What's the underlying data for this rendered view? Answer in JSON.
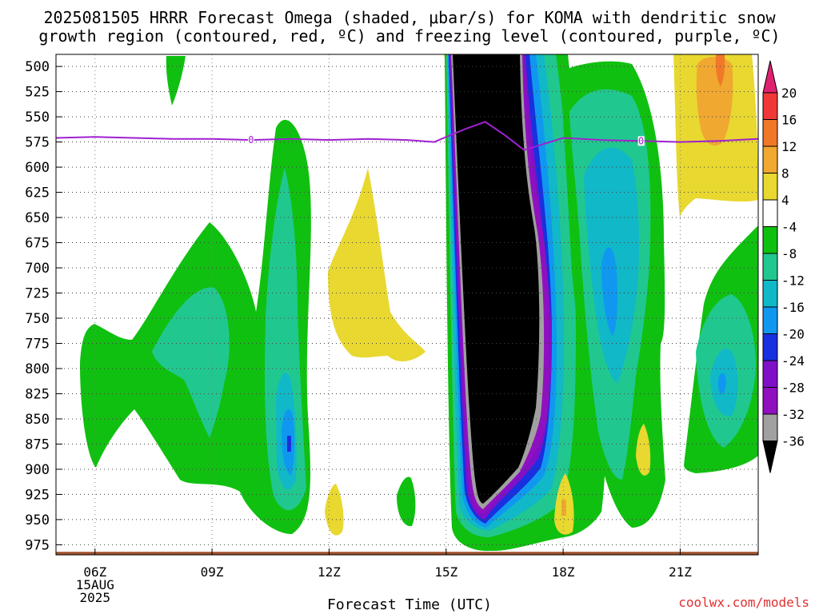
{
  "title": {
    "line1": "2025081505 HRRR Forecast Omega (shaded, μbar/s) for KOMA with dendritic snow",
    "line2": "growth region (contoured, red, ºC) and freezing level (contoured, purple, ºC)"
  },
  "xlabel": "Forecast Time (UTC)",
  "credit": "coolwx.com/models",
  "colors": {
    "freezing_line": "#a020d0",
    "ground": "#a0522d",
    "grid": "#808080"
  },
  "chart_data": {
    "type": "heatmap",
    "y_axis": {
      "label": "",
      "ticks": [
        "500",
        "525",
        "550",
        "575",
        "600",
        "625",
        "650",
        "675",
        "700",
        "725",
        "750",
        "775",
        "800",
        "825",
        "850",
        "875",
        "900",
        "925",
        "950",
        "975"
      ],
      "range": [
        488,
        985
      ]
    },
    "x_axis": {
      "label": "Forecast Time (UTC)",
      "ticks": [
        {
          "hour": 6,
          "label": "06Z",
          "sub1": "15AUG",
          "sub2": "2025"
        },
        {
          "hour": 9,
          "label": "09Z"
        },
        {
          "hour": 12,
          "label": "12Z"
        },
        {
          "hour": 15,
          "label": "15Z"
        },
        {
          "hour": 18,
          "label": "18Z"
        },
        {
          "hour": 21,
          "label": "21Z"
        }
      ],
      "range": [
        5,
        23
      ]
    },
    "colorbar": {
      "labels": [
        "20",
        "16",
        "12",
        "8",
        "4",
        "-4",
        "-8",
        "-12",
        "-16",
        "-20",
        "-24",
        "-28",
        "-32",
        "-36"
      ],
      "colors": [
        "#e02070",
        "#f03838",
        "#f07828",
        "#f0a830",
        "#e8d830",
        "#ffffff",
        "#10c010",
        "#20c890",
        "#10b8c8",
        "#1098f0",
        "#1830e0",
        "#8010c8",
        "#9010c0",
        "#a0a0a0",
        "#000000"
      ]
    },
    "freezing_level": {
      "value_label": "0",
      "points": [
        [
          5,
          571
        ],
        [
          6,
          570
        ],
        [
          7,
          571
        ],
        [
          8,
          572
        ],
        [
          9,
          572
        ],
        [
          10,
          573
        ],
        [
          11,
          572
        ],
        [
          12,
          573
        ],
        [
          13,
          572
        ],
        [
          14,
          573
        ],
        [
          14.7,
          575
        ],
        [
          15,
          570
        ],
        [
          15.5,
          562
        ],
        [
          16,
          555
        ],
        [
          16.5,
          568
        ],
        [
          17,
          583
        ],
        [
          17.5,
          577
        ],
        [
          18,
          571
        ],
        [
          19,
          573
        ],
        [
          20,
          574
        ],
        [
          21,
          575
        ],
        [
          22,
          574
        ],
        [
          23,
          572
        ]
      ],
      "label_hours": [
        10,
        20
      ]
    }
  }
}
